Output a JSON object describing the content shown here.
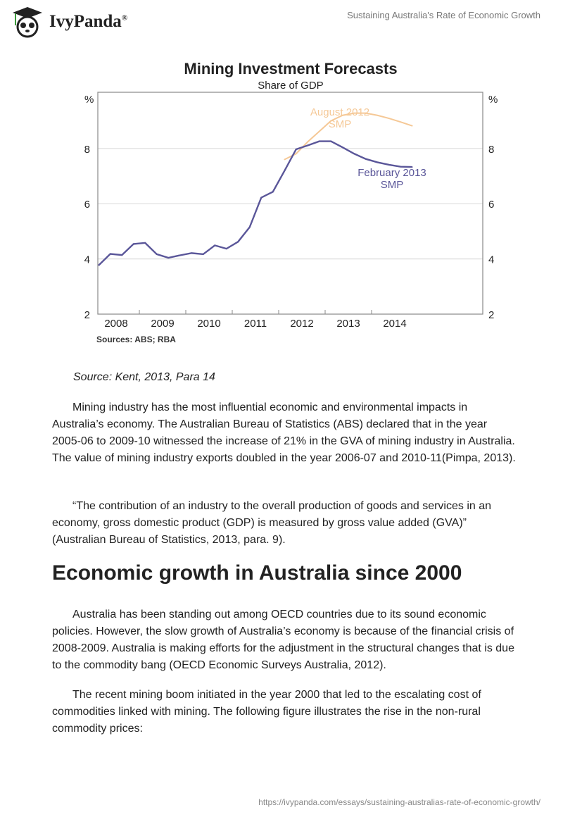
{
  "header": {
    "logo_text": "IvyPanda",
    "logo_mark": "®",
    "doc_title": "Sustaining Australia's Rate of Economic Growth"
  },
  "figure": {
    "caption": "Source: Kent, 2013, Para 14"
  },
  "chart_data": {
    "type": "line",
    "title": "Mining Investment Forecasts",
    "subtitle": "Share of GDP",
    "ylabel_left": "%",
    "ylabel_right": "%",
    "ylim": [
      2,
      10
    ],
    "yticks": [
      "2",
      "4",
      "6",
      "8"
    ],
    "xlim": [
      2008,
      2015
    ],
    "xticks": [
      "2008",
      "2009",
      "2010",
      "2011",
      "2012",
      "2013",
      "2014"
    ],
    "grid": true,
    "source": "Sources: ABS; RBA",
    "series": [
      {
        "name": "August 2012 SMP",
        "label_lines": [
          "August 2012",
          "SMP"
        ],
        "color": "#f5c896",
        "x": [
          2012.125,
          2012.375,
          2012.625,
          2012.875,
          2013.125,
          2013.375,
          2013.625,
          2013.875,
          2014.125,
          2014.375,
          2014.625,
          2014.875
        ],
        "y": [
          7.6,
          7.81,
          8.24,
          8.62,
          9.0,
          9.2,
          9.28,
          9.28,
          9.2,
          9.09,
          8.96,
          8.82
        ]
      },
      {
        "name": "February 2013 SMP",
        "label_lines": [
          "February 2013",
          "SMP"
        ],
        "color": "#5a5699",
        "x": [
          2008.125,
          2008.375,
          2008.625,
          2008.875,
          2009.125,
          2009.375,
          2009.625,
          2009.875,
          2010.125,
          2010.375,
          2010.625,
          2010.875,
          2011.125,
          2011.375,
          2011.625,
          2011.875,
          2012.125,
          2012.375,
          2012.625,
          2012.875,
          2013.125,
          2013.375,
          2013.625,
          2013.875,
          2014.125,
          2014.375,
          2014.625,
          2014.875
        ],
        "y": [
          3.77,
          4.18,
          4.14,
          4.54,
          4.58,
          4.17,
          4.04,
          4.13,
          4.21,
          4.17,
          4.49,
          4.37,
          4.62,
          5.15,
          6.22,
          6.43,
          7.19,
          7.97,
          8.11,
          8.26,
          8.26,
          8.04,
          7.81,
          7.62,
          7.5,
          7.41,
          7.34,
          7.33
        ]
      }
    ]
  },
  "body": {
    "p1": "Mining industry has the most influential economic and environmental impacts in Australia’s economy. The Australian Bureau of Statistics (ABS) declared that in the year 2005-06 to 2009-10 witnessed the increase of 21% in the GVA of mining industry in Australia. The value of mining industry exports doubled in the year 2006-07 and 2010-11(Pimpa, 2013).",
    "p2": "“The contribution of an industry to the overall production of goods and services in an economy, gross domestic product (GDP) is measured by gross value added (GVA)” (Australian Bureau of Statistics, 2013, para. 9).",
    "heading": "Economic growth in Australia since 2000",
    "p3": "Australia has been standing out among OECD countries due to its sound economic policies. However, the slow growth of Australia’s economy is because of the financial crisis of 2008-2009. Australia is making efforts for the adjustment in the structural changes that is due to the commodity bang (OECD Economic Surveys Australia, 2012).",
    "p4": "The recent mining boom initiated in the year 2000 that led to the escalating cost of commodities linked with mining. The following figure illustrates the rise in the non-rural commodity prices:"
  },
  "footer": {
    "url": "https://ivypanda.com/essays/sustaining-australias-rate-of-economic-growth/"
  }
}
